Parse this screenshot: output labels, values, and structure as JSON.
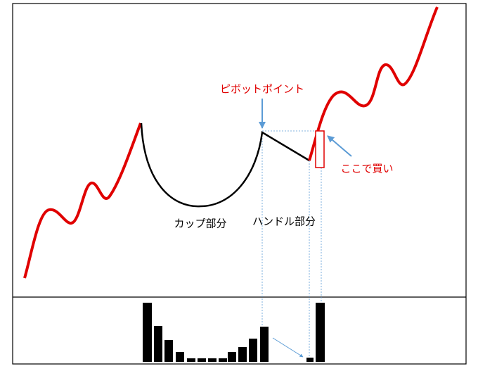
{
  "labels": {
    "pivot": "ピボットポイント",
    "buy": "ここで買い",
    "cup": "カップ部分",
    "handle": "ハンドル部分"
  }
}
